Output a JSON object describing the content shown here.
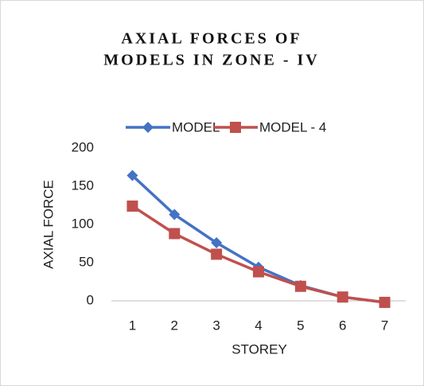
{
  "chart_data": {
    "type": "line",
    "title": [
      "AXIAL FORCES OF",
      "MODELS IN ZONE - IV"
    ],
    "xlabel": "STOREY",
    "ylabel": "AXIAL FORCE",
    "categories": [
      "1",
      "2",
      "3",
      "4",
      "5",
      "6",
      "7"
    ],
    "series": [
      {
        "name": "MODEL - 2",
        "color": "#4472c4",
        "marker": "diamond",
        "values": [
          164,
          113,
          76,
          44,
          20,
          5,
          -2
        ]
      },
      {
        "name": "MODEL - 4",
        "color": "#c0504d",
        "marker": "square",
        "values": [
          124,
          88,
          61,
          38,
          19,
          5,
          -2
        ]
      }
    ],
    "ylim": [
      0,
      200
    ],
    "yticks": [
      0,
      50,
      100,
      150,
      200
    ],
    "legend": "top"
  }
}
